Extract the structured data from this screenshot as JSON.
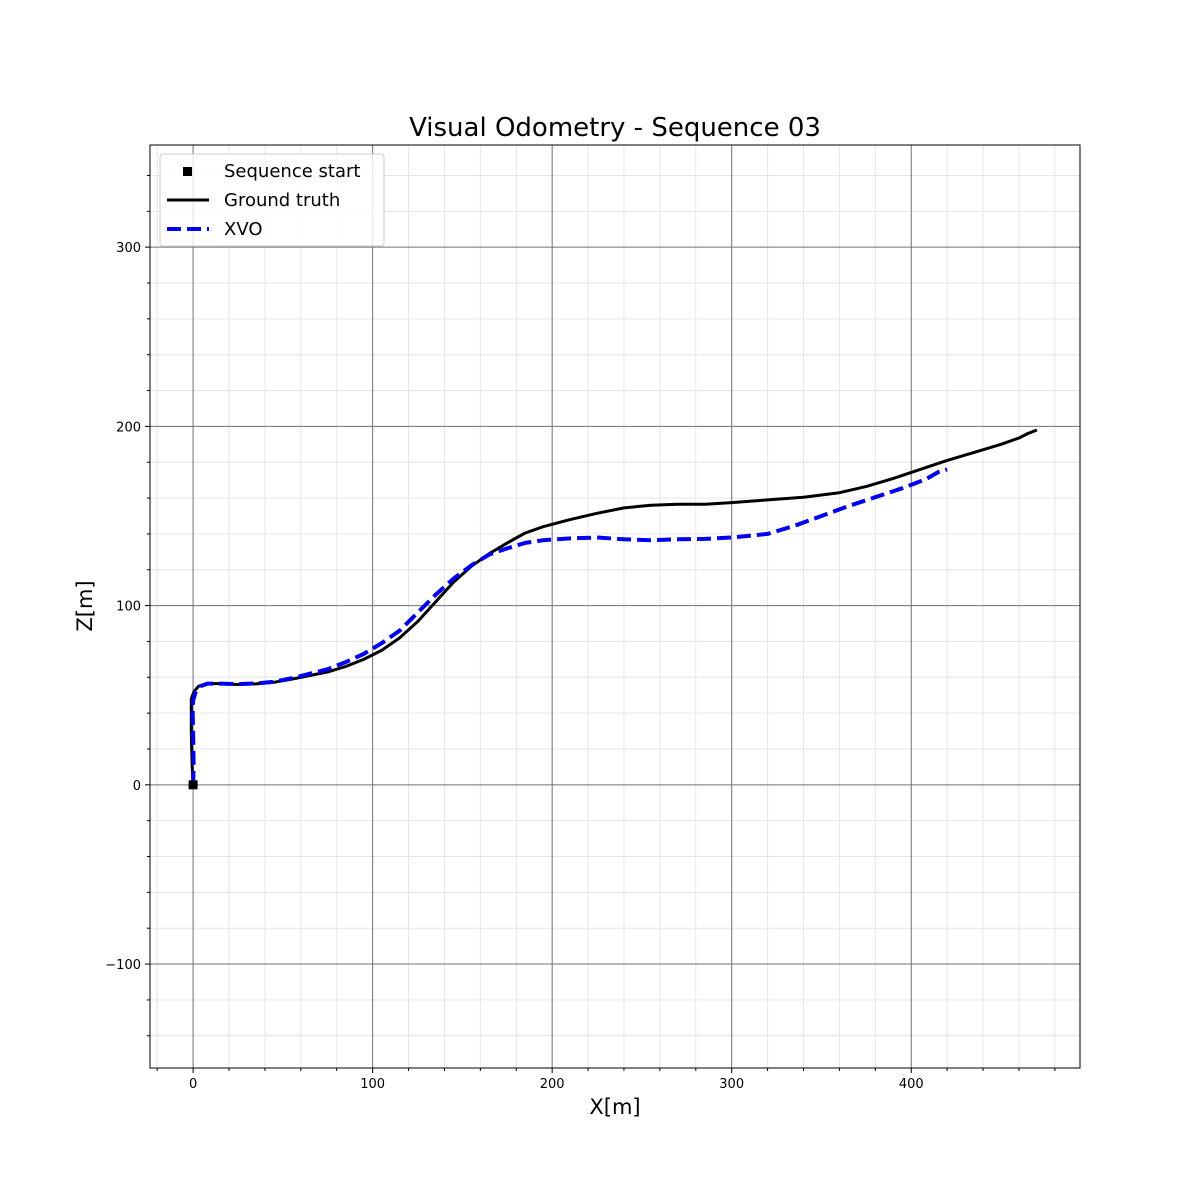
{
  "chart_data": {
    "type": "line",
    "title": "Visual Odometry - Sequence 03",
    "xlabel": "X[m]",
    "ylabel": "Z[m]",
    "xlim": [
      -24,
      494
    ],
    "ylim": [
      -158,
      357
    ],
    "x_ticks": [
      0,
      100,
      200,
      300,
      400
    ],
    "y_ticks": [
      -100,
      0,
      100,
      200,
      300
    ],
    "x_tick_labels": [
      "0",
      "100",
      "200",
      "300",
      "400"
    ],
    "y_tick_labels": [
      "−100",
      "0",
      "100",
      "200",
      "300"
    ],
    "grid": true,
    "minor_grid": true,
    "legend_position": "upper-left",
    "legend": [
      "Sequence start",
      "Ground truth",
      "XVO"
    ],
    "start_point": {
      "name": "Sequence start",
      "x": 0,
      "y": 0,
      "color": "#000000"
    },
    "series": [
      {
        "name": "Ground truth",
        "color": "#000000",
        "style": "solid",
        "points": [
          [
            0,
            0
          ],
          [
            -0.5,
            10
          ],
          [
            -0.8,
            20
          ],
          [
            -1,
            30
          ],
          [
            -1,
            40
          ],
          [
            -1,
            48
          ],
          [
            0.5,
            52
          ],
          [
            3,
            55
          ],
          [
            8,
            56.5
          ],
          [
            15,
            56.5
          ],
          [
            25,
            56
          ],
          [
            35,
            56.3
          ],
          [
            45,
            57.2
          ],
          [
            55,
            59
          ],
          [
            65,
            61
          ],
          [
            75,
            63
          ],
          [
            85,
            66
          ],
          [
            95,
            70
          ],
          [
            105,
            75
          ],
          [
            115,
            82
          ],
          [
            125,
            91
          ],
          [
            135,
            102
          ],
          [
            145,
            113
          ],
          [
            155,
            122
          ],
          [
            165,
            129
          ],
          [
            175,
            135
          ],
          [
            185,
            140.5
          ],
          [
            195,
            144
          ],
          [
            210,
            148
          ],
          [
            225,
            151.5
          ],
          [
            240,
            154.5
          ],
          [
            255,
            156
          ],
          [
            270,
            156.5
          ],
          [
            285,
            156.5
          ],
          [
            300,
            157.5
          ],
          [
            320,
            159
          ],
          [
            340,
            160.5
          ],
          [
            360,
            163
          ],
          [
            375,
            166.5
          ],
          [
            390,
            171
          ],
          [
            405,
            176
          ],
          [
            420,
            181
          ],
          [
            435,
            185.5
          ],
          [
            450,
            190
          ],
          [
            460,
            193.5
          ],
          [
            465,
            196
          ],
          [
            470,
            198
          ]
        ]
      },
      {
        "name": "XVO",
        "color": "#0000ee",
        "style": "dashed",
        "points": [
          [
            0,
            0
          ],
          [
            0.3,
            10
          ],
          [
            0.2,
            20
          ],
          [
            0,
            30
          ],
          [
            -0.2,
            40
          ],
          [
            0,
            47
          ],
          [
            1.5,
            52
          ],
          [
            4,
            55
          ],
          [
            8,
            56.5
          ],
          [
            15,
            56.5
          ],
          [
            25,
            56.2
          ],
          [
            35,
            56.6
          ],
          [
            45,
            57.5
          ],
          [
            55,
            59.5
          ],
          [
            65,
            62
          ],
          [
            75,
            64.5
          ],
          [
            85,
            68.5
          ],
          [
            95,
            73
          ],
          [
            105,
            79
          ],
          [
            115,
            86
          ],
          [
            125,
            96
          ],
          [
            135,
            106
          ],
          [
            145,
            115
          ],
          [
            155,
            122.5
          ],
          [
            165,
            128.5
          ],
          [
            175,
            132
          ],
          [
            185,
            135
          ],
          [
            195,
            136.5
          ],
          [
            210,
            137.5
          ],
          [
            225,
            138
          ],
          [
            240,
            137
          ],
          [
            255,
            136.5
          ],
          [
            270,
            137
          ],
          [
            285,
            137.2
          ],
          [
            300,
            138
          ],
          [
            320,
            140
          ],
          [
            335,
            144.5
          ],
          [
            350,
            150
          ],
          [
            365,
            155.5
          ],
          [
            380,
            160.5
          ],
          [
            395,
            165.5
          ],
          [
            408,
            170.5
          ],
          [
            415,
            174.5
          ],
          [
            420,
            176
          ]
        ]
      }
    ]
  }
}
